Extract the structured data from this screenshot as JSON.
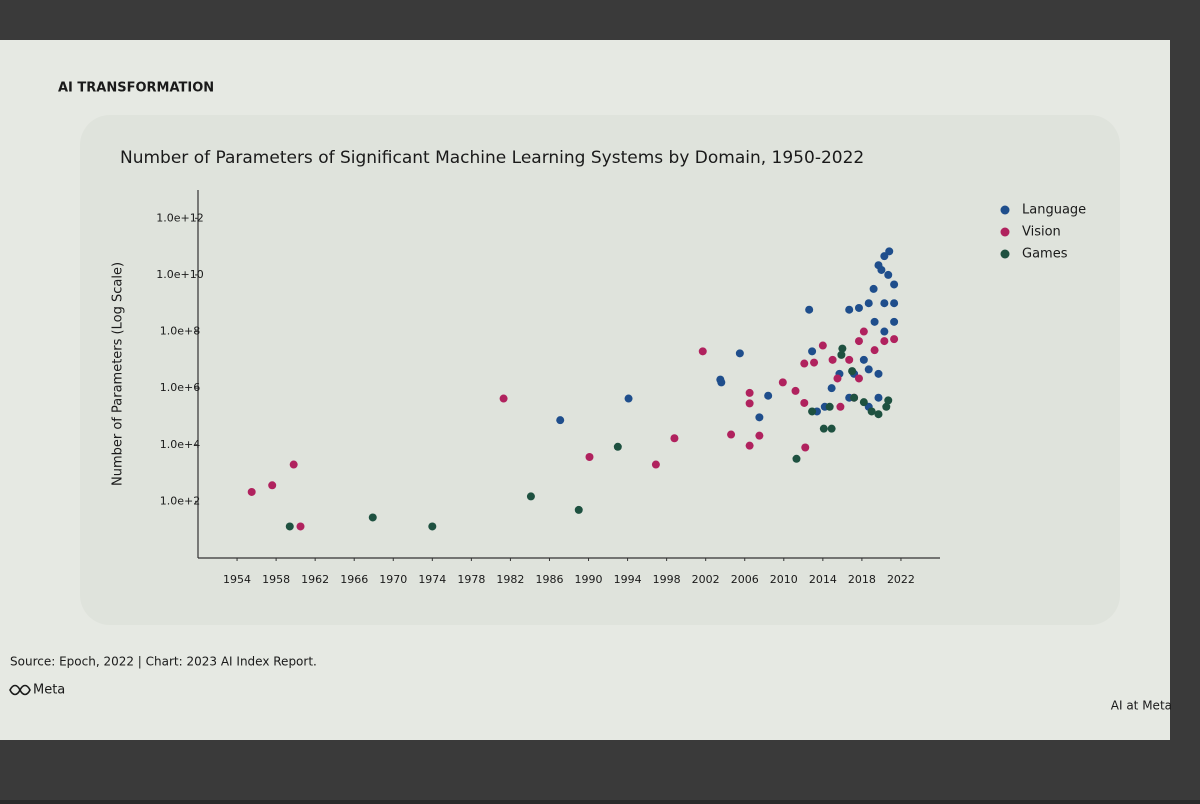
{
  "header": "AI TRANSFORMATION",
  "footer": {
    "source": "Source: Epoch, 2022 | Chart: 2023 AI Index Report.",
    "brand": "Meta",
    "tagline": "AI at Meta"
  },
  "chart_data": {
    "type": "scatter",
    "title": "Number of Parameters of Significant Machine Learning Systems by Domain, 1950-2022",
    "y_label": "Number of Parameters (Log Scale)",
    "yscale": "log",
    "legend": "right",
    "grid": false,
    "xlim": [
      1950,
      2026
    ],
    "xticks": [
      1954,
      1958,
      1962,
      1966,
      1970,
      1974,
      1978,
      1982,
      1986,
      1990,
      1994,
      1998,
      2002,
      2006,
      2010,
      2014,
      2018,
      2022
    ],
    "ylim": [
      1,
      10000000000000
    ],
    "yticks": [
      {
        "value": 100,
        "label": "1.0e+2"
      },
      {
        "value": 10000,
        "label": "1.0e+4"
      },
      {
        "value": 1000000,
        "label": "1.0e+6"
      },
      {
        "value": 100000000,
        "label": "1.0e+8"
      },
      {
        "value": 10000000000,
        "label": "1.0e+10"
      },
      {
        "value": 1000000000000,
        "label": "1.0e+12"
      }
    ],
    "series": [
      {
        "name": "Language",
        "color": "#1f4e8c",
        "x": [
          1987.1,
          1994.1,
          2003.5,
          2003.6,
          2005.5,
          2007.5,
          2008.4,
          2012.6,
          2012.9,
          2014.9,
          2016.7,
          2017.7,
          2018.7,
          2019.2,
          2020.0,
          2020.3,
          2019.7,
          2020.7,
          2021.3,
          2021.3,
          2021.3,
          2020.8,
          2020.3,
          2019.3,
          2018.2,
          2020.3,
          2017.2,
          2015.7,
          2014.2,
          2013.4,
          2016.7,
          2018.7,
          2019.7,
          2018.7,
          2019.7
        ],
        "values": [
          74000,
          430000,
          2000000,
          1600000,
          17000000,
          93000,
          540000,
          590000000,
          20000000,
          1000000,
          590000000,
          680000000,
          1000000000,
          3200000000,
          15000000000,
          46000000000,
          22000000000,
          10000000000,
          4600000000,
          1000000000,
          220000000,
          68000000000,
          1000000000,
          220000000,
          10000000,
          100000000,
          3200000,
          3200000,
          220000,
          150000,
          460000,
          4600000,
          3200000,
          220000,
          460000
        ]
      },
      {
        "name": "Vision",
        "color": "#b0225e",
        "x": [
          1955.5,
          1957.6,
          1959.8,
          1960.5,
          1981.3,
          1990.1,
          1996.9,
          1998.8,
          2001.7,
          2004.6,
          2006.5,
          2006.5,
          2006.5,
          2007.5,
          2009.9,
          2011.2,
          2012.1,
          2013.1,
          2012.2,
          2012.1,
          2014.0,
          2015.0,
          2015.5,
          2015.8,
          2017.7,
          2018.2,
          2019.3,
          2020.3,
          2021.3,
          2017.2,
          2016.7,
          2017.7
        ],
        "values": [
          215,
          370,
          2000,
          13,
          430000,
          3700,
          2000,
          17000,
          20000000,
          23000,
          9300,
          680000,
          290000,
          21000,
          1600000,
          800000,
          7400000,
          8000000,
          8000,
          300000,
          32000000,
          10000000,
          2200000,
          220000,
          46000000,
          100000000,
          22000000,
          46000000,
          54000000,
          460000,
          10000000,
          2200000
        ]
      },
      {
        "name": "Games",
        "color": "#1e5140",
        "x": [
          1959.4,
          1967.9,
          1974.0,
          1984.1,
          1989.0,
          1993.0,
          2011.3,
          2014.1,
          2014.9,
          2016.0,
          2017.0,
          2017.2,
          2018.2,
          2019.0,
          2019.7,
          2020.5,
          2020.7,
          2012.9,
          2014.7,
          2015.9
        ],
        "values": [
          13,
          27,
          13,
          150,
          50,
          8500,
          3200,
          37000,
          37000,
          25000000,
          4000000,
          460000,
          320000,
          150000,
          120000,
          220000,
          370000,
          150000,
          220000,
          15000000
        ]
      }
    ]
  }
}
